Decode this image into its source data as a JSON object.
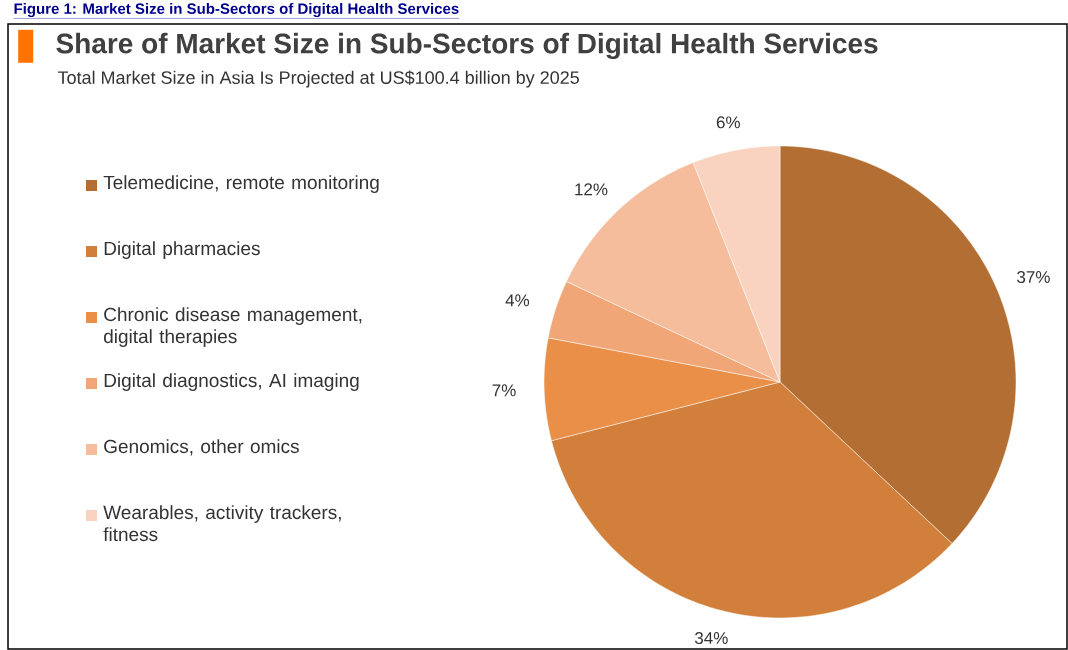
{
  "chart_data": {
    "type": "pie",
    "title": "Share of Market Size in Sub-Sectors of Digital Health Services",
    "subtitle": "Total Market Size in Asia Is Projected at US$100.4 billion by 2025",
    "annotations": [
      "Figure 1: Market Size in Sub-Sectors of Digital Health Services"
    ],
    "categories": [
      "Telemedicine, remote monitoring",
      "Digital pharmacies",
      "Chronic disease management, digital therapies",
      "Digital diagnostics, AI imaging",
      "Genomics, other omics",
      "Wearables, activity trackers, fitness"
    ],
    "values": [
      37,
      34,
      7,
      4,
      12,
      6
    ],
    "value_labels": [
      "37%",
      "34%",
      "7%",
      "4%",
      "12%",
      "6%"
    ],
    "colors": [
      "#b36f33",
      "#d17f3a",
      "#e98f47",
      "#f0a676",
      "#f5bd9c",
      "#f9d3c0"
    ],
    "legend": "left"
  }
}
